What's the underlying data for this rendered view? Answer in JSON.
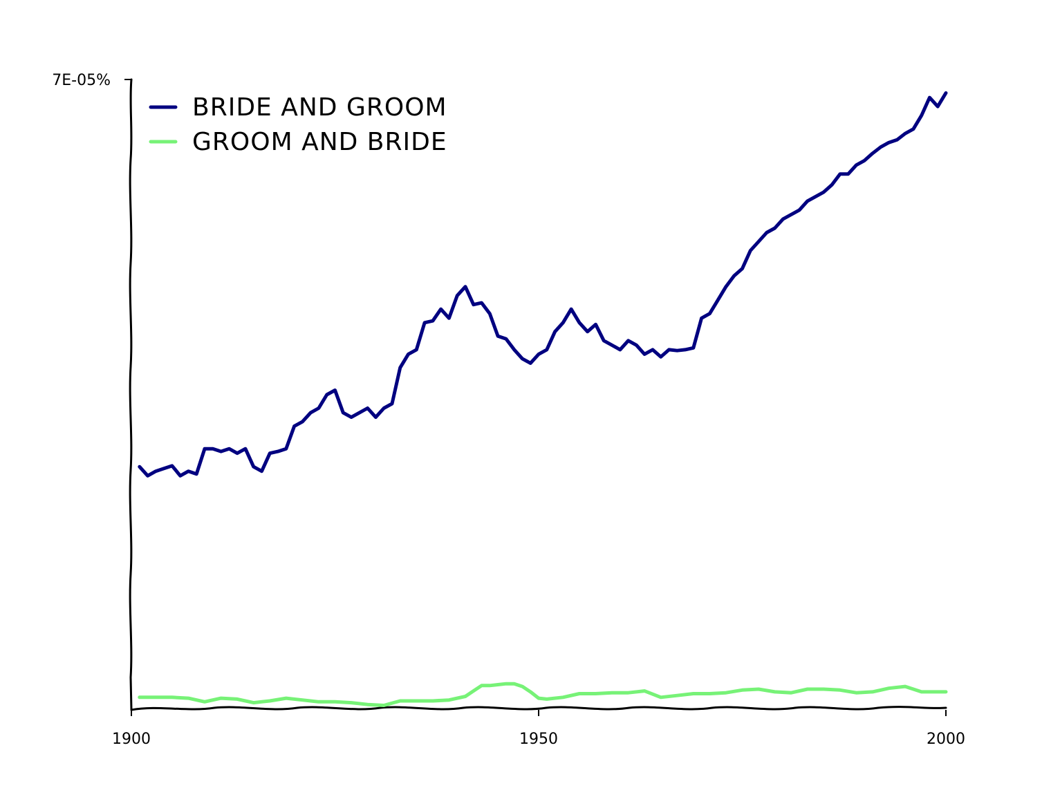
{
  "chart_data": {
    "type": "line",
    "title": "",
    "xlabel": "",
    "ylabel": "",
    "xlim": [
      1900,
      2000
    ],
    "ylim": [
      0,
      7e-05
    ],
    "x_ticks": [
      1900,
      1950,
      2000
    ],
    "y_tick_label": "7E-05%",
    "grid": false,
    "legend_position": "top-left",
    "series": [
      {
        "name": "BRIDE AND GROOM",
        "color": "#000080",
        "x": [
          1901,
          1902,
          1903,
          1904,
          1905,
          1906,
          1907,
          1908,
          1909,
          1910,
          1911,
          1912,
          1913,
          1914,
          1915,
          1916,
          1917,
          1918,
          1919,
          1920,
          1921,
          1922,
          1923,
          1924,
          1925,
          1926,
          1927,
          1928,
          1929,
          1930,
          1931,
          1932,
          1933,
          1934,
          1935,
          1936,
          1937,
          1938,
          1939,
          1940,
          1941,
          1942,
          1943,
          1944,
          1945,
          1946,
          1947,
          1948,
          1949,
          1950,
          1951,
          1952,
          1953,
          1954,
          1955,
          1956,
          1957,
          1958,
          1959,
          1960,
          1961,
          1962,
          1963,
          1964,
          1965,
          1966,
          1967,
          1968,
          1969,
          1970,
          1971,
          1972,
          1973,
          1974,
          1975,
          1976,
          1977,
          1978,
          1979,
          1980,
          1981,
          1982,
          1983,
          1984,
          1985,
          1986,
          1987,
          1988,
          1989,
          1990,
          1991,
          1992,
          1993,
          1994,
          1995,
          1996,
          1997,
          1998,
          1999,
          2000
        ],
        "values": [
          2.7e-05,
          2.6e-05,
          2.65e-05,
          2.68e-05,
          2.71e-05,
          2.6e-05,
          2.65e-05,
          2.62e-05,
          2.9e-05,
          2.9e-05,
          2.87e-05,
          2.9e-05,
          2.85e-05,
          2.9e-05,
          2.7e-05,
          2.65e-05,
          2.85e-05,
          2.87e-05,
          2.9e-05,
          3.15e-05,
          3.2e-05,
          3.3e-05,
          3.35e-05,
          3.5e-05,
          3.55e-05,
          3.3e-05,
          3.25e-05,
          3.3e-05,
          3.35e-05,
          3.25e-05,
          3.35e-05,
          3.4e-05,
          3.8e-05,
          3.95e-05,
          4e-05,
          4.3e-05,
          4.32e-05,
          4.45e-05,
          4.35e-05,
          4.6e-05,
          4.7e-05,
          4.5e-05,
          4.52e-05,
          4.4e-05,
          4.15e-05,
          4.12e-05,
          4e-05,
          3.9e-05,
          3.85e-05,
          3.95e-05,
          4e-05,
          4.2e-05,
          4.3e-05,
          4.45e-05,
          4.3e-05,
          4.2e-05,
          4.28e-05,
          4.1e-05,
          4.05e-05,
          4e-05,
          4.1e-05,
          4.05e-05,
          3.95e-05,
          4e-05,
          3.92e-05,
          4e-05,
          3.99e-05,
          4e-05,
          4.02e-05,
          4.35e-05,
          4.4e-05,
          4.55e-05,
          4.7e-05,
          4.82e-05,
          4.9e-05,
          5.1e-05,
          5.2e-05,
          5.3e-05,
          5.35e-05,
          5.45e-05,
          5.5e-05,
          5.55e-05,
          5.65e-05,
          5.7e-05,
          5.75e-05,
          5.83e-05,
          5.95e-05,
          5.95e-05,
          6.05e-05,
          6.1e-05,
          6.18e-05,
          6.25e-05,
          6.3e-05,
          6.33e-05,
          6.4e-05,
          6.45e-05,
          6.6e-05,
          6.8e-05,
          6.7e-05,
          6.85e-05
        ]
      },
      {
        "name": "GROOM AND BRIDE",
        "color": "#77f277",
        "x": [
          1901,
          1903,
          1905,
          1907,
          1909,
          1911,
          1913,
          1915,
          1917,
          1919,
          1921,
          1923,
          1925,
          1927,
          1929,
          1931,
          1933,
          1935,
          1937,
          1939,
          1941,
          1942,
          1943,
          1944,
          1945,
          1946,
          1947,
          1948,
          1949,
          1950,
          1951,
          1953,
          1955,
          1957,
          1959,
          1961,
          1963,
          1965,
          1967,
          1969,
          1971,
          1973,
          1975,
          1977,
          1979,
          1981,
          1983,
          1985,
          1987,
          1989,
          1991,
          1993,
          1995,
          1997,
          1999,
          2000
        ],
        "values": [
          1.4e-06,
          1.4e-06,
          1.4e-06,
          1.3e-06,
          9e-07,
          1.3e-06,
          1.2e-06,
          8e-07,
          1e-06,
          1.3e-06,
          1.1e-06,
          9e-07,
          9e-07,
          8e-07,
          6e-07,
          5e-07,
          1e-06,
          1e-06,
          1e-06,
          1.1e-06,
          1.5e-06,
          2.1e-06,
          2.7e-06,
          2.7e-06,
          2.8e-06,
          2.9e-06,
          2.9e-06,
          2.6e-06,
          2e-06,
          1.3e-06,
          1.2e-06,
          1.4e-06,
          1.8e-06,
          1.8e-06,
          1.9e-06,
          1.9e-06,
          2.1e-06,
          1.4e-06,
          1.6e-06,
          1.8e-06,
          1.8e-06,
          1.9e-06,
          2.2e-06,
          2.3e-06,
          2e-06,
          1.9e-06,
          2.3e-06,
          2.3e-06,
          2.2e-06,
          1.9e-06,
          2e-06,
          2.4e-06,
          2.6e-06,
          2e-06,
          2e-06,
          2e-06
        ]
      }
    ]
  }
}
